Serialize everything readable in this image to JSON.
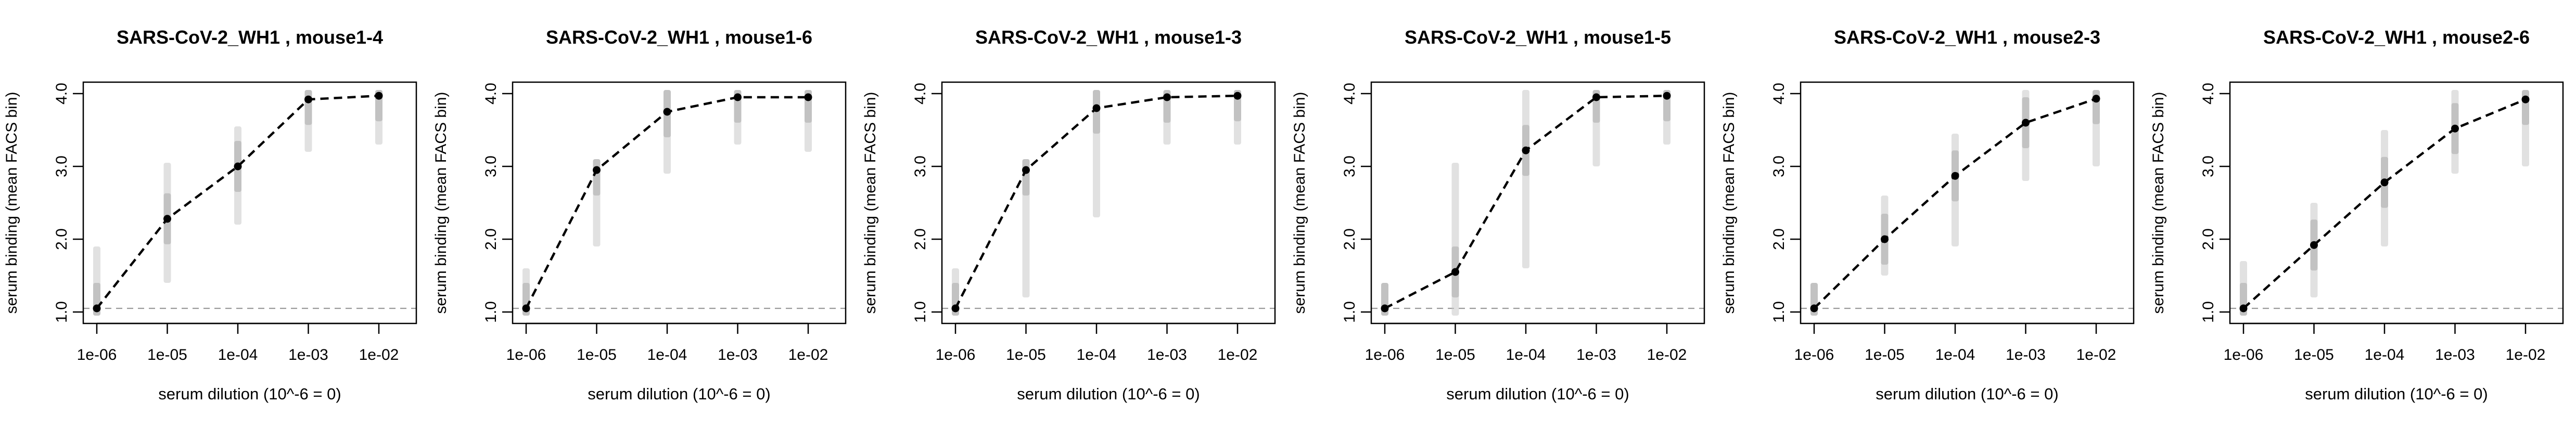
{
  "figure": {
    "shared": {
      "xlabel": "serum dilution (10^-6 = 0)",
      "ylabel": "serum binding (mean FACS bin)",
      "x_ticks": [
        {
          "value": -6,
          "label": "1e-06"
        },
        {
          "value": -5,
          "label": "1e-05"
        },
        {
          "value": -4,
          "label": "1e-04"
        },
        {
          "value": -3,
          "label": "1e-03"
        },
        {
          "value": -2,
          "label": "1e-02"
        }
      ],
      "y_ticks": [
        {
          "value": 1.0,
          "label": "1.0"
        },
        {
          "value": 2.0,
          "label": "2.0"
        },
        {
          "value": 3.0,
          "label": "3.0"
        },
        {
          "value": 4.0,
          "label": "4.0"
        }
      ]
    }
  },
  "chart_data": [
    {
      "type": "line",
      "title": "SARS-CoV-2_WH1 , mouse1-4",
      "x_scale": "log10",
      "xlim": [
        -6,
        -2
      ],
      "ylim": [
        1.0,
        4.0
      ],
      "x": [
        "1e-06",
        "1e-05",
        "1e-04",
        "1e-03",
        "1e-02"
      ],
      "series": [
        {
          "values": [
            1.05,
            2.28,
            3.0,
            3.92,
            3.97
          ]
        }
      ],
      "baseline": 1.05,
      "spread": [
        [
          0.95,
          1.9
        ],
        [
          1.4,
          3.05
        ],
        [
          2.2,
          3.55
        ],
        [
          3.2,
          4.05
        ],
        [
          3.3,
          4.05
        ]
      ]
    },
    {
      "type": "line",
      "title": "SARS-CoV-2_WH1 , mouse1-6",
      "x_scale": "log10",
      "xlim": [
        -6,
        -2
      ],
      "ylim": [
        1.0,
        4.0
      ],
      "x": [
        "1e-06",
        "1e-05",
        "1e-04",
        "1e-03",
        "1e-02"
      ],
      "series": [
        {
          "values": [
            1.05,
            2.95,
            3.75,
            3.95,
            3.95
          ]
        }
      ],
      "baseline": 1.05,
      "spread": [
        [
          0.95,
          1.6
        ],
        [
          1.9,
          3.1
        ],
        [
          2.9,
          4.05
        ],
        [
          3.3,
          4.05
        ],
        [
          3.2,
          4.05
        ]
      ]
    },
    {
      "type": "line",
      "title": "SARS-CoV-2_WH1 , mouse1-3",
      "x_scale": "log10",
      "xlim": [
        -6,
        -2
      ],
      "ylim": [
        1.0,
        4.0
      ],
      "x": [
        "1e-06",
        "1e-05",
        "1e-04",
        "1e-03",
        "1e-02"
      ],
      "series": [
        {
          "values": [
            1.05,
            2.95,
            3.8,
            3.95,
            3.97
          ]
        }
      ],
      "baseline": 1.05,
      "spread": [
        [
          0.95,
          1.6
        ],
        [
          1.2,
          3.1
        ],
        [
          2.3,
          4.05
        ],
        [
          3.3,
          4.05
        ],
        [
          3.3,
          4.05
        ]
      ]
    },
    {
      "type": "line",
      "title": "SARS-CoV-2_WH1 , mouse1-5",
      "x_scale": "log10",
      "xlim": [
        -6,
        -2
      ],
      "ylim": [
        1.0,
        4.0
      ],
      "x": [
        "1e-06",
        "1e-05",
        "1e-04",
        "1e-03",
        "1e-02"
      ],
      "series": [
        {
          "values": [
            1.05,
            1.55,
            3.22,
            3.95,
            3.97
          ]
        }
      ],
      "baseline": 1.05,
      "spread": [
        [
          0.95,
          1.4
        ],
        [
          0.95,
          3.05
        ],
        [
          1.6,
          4.05
        ],
        [
          3.0,
          4.05
        ],
        [
          3.3,
          4.05
        ]
      ]
    },
    {
      "type": "line",
      "title": "SARS-CoV-2_WH1 , mouse2-3",
      "x_scale": "log10",
      "xlim": [
        -6,
        -2
      ],
      "ylim": [
        1.0,
        4.0
      ],
      "x": [
        "1e-06",
        "1e-05",
        "1e-04",
        "1e-03",
        "1e-02"
      ],
      "series": [
        {
          "values": [
            1.05,
            2.0,
            2.87,
            3.6,
            3.93
          ]
        }
      ],
      "baseline": 1.05,
      "spread": [
        [
          0.95,
          1.4
        ],
        [
          1.5,
          2.6
        ],
        [
          1.9,
          3.45
        ],
        [
          2.8,
          4.05
        ],
        [
          3.0,
          4.05
        ]
      ]
    },
    {
      "type": "line",
      "title": "SARS-CoV-2_WH1 , mouse2-6",
      "x_scale": "log10",
      "xlim": [
        -6,
        -2
      ],
      "ylim": [
        1.0,
        4.0
      ],
      "x": [
        "1e-06",
        "1e-05",
        "1e-04",
        "1e-03",
        "1e-02"
      ],
      "series": [
        {
          "values": [
            1.05,
            1.92,
            2.78,
            3.52,
            3.92
          ]
        }
      ],
      "baseline": 1.05,
      "spread": [
        [
          0.95,
          1.7
        ],
        [
          1.2,
          2.5
        ],
        [
          1.9,
          3.5
        ],
        [
          2.9,
          4.05
        ],
        [
          3.0,
          4.05
        ]
      ]
    }
  ]
}
